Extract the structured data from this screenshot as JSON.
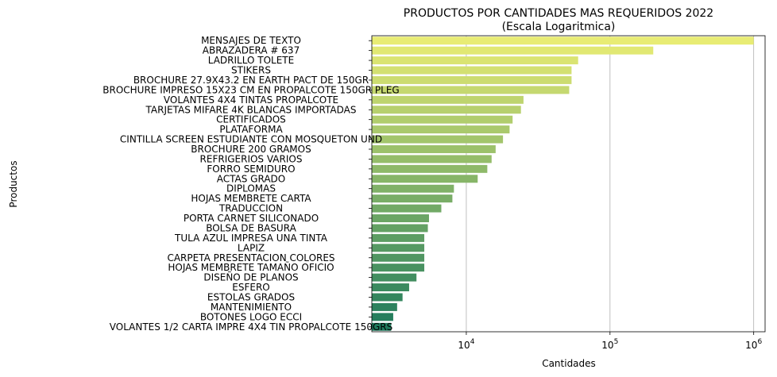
{
  "chart_data": {
    "type": "bar",
    "orientation": "horizontal",
    "title": "PRODUCTOS POR CANTIDADES MAS REQUERIDOS 2022",
    "subtitle": "(Escala Logaritmica)",
    "xlabel": "Cantidades",
    "ylabel": "Productos",
    "xscale": "log",
    "xlim": [
      2200,
      1200000
    ],
    "xticks": [
      {
        "value": 10000,
        "base": "10",
        "exp": "4"
      },
      {
        "value": 100000,
        "base": "10",
        "exp": "5"
      },
      {
        "value": 1000000,
        "base": "10",
        "exp": "6"
      }
    ],
    "grid": "x-major",
    "palette": "yellow-to-green",
    "bar_color_start": "#e8ec74",
    "bar_color_end": "#1f7a5c",
    "categories": [
      "MENSAJES DE TEXTO",
      "ABRAZADERA # 637",
      "LADRILLO TOLETE",
      "STIKERS",
      "BROCHURE 27.9X43.2 EN EARTH PACT DE 150GR",
      "BROCHURE IMPRESO 15X23 CM EN PROPALCOTE 150GR PLEG",
      "VOLANTES 4X4 TINTAS PROPALCOTE",
      "TARJETAS MIFARE 4K BLANCAS IMPORTADAS",
      "CERTIFICADOS",
      "PLATAFORMA",
      "CINTILLA SCREEN ESTUDIANTE CON MOSQUETON UND",
      "BROCHURE 200 GRAMOS",
      "REFRIGERIOS VARIOS",
      "FORRO SEMIDURO",
      "ACTAS GRADO",
      "DIPLOMAS",
      "HOJAS MEMBRETE CARTA",
      "TRADUCCION",
      "PORTA CARNET SILICONADO",
      "BOLSA DE BASURA",
      "TULA AZUL IMPRESA UNA TINTA",
      "LAPIZ",
      "CARPETA PRESENTACION COLORES",
      "HOJAS MEMBRETE TAMAÑO OFICIO",
      "DISEÑO DE PLANOS",
      "ESFERO",
      "ESTOLAS GRADOS",
      "MANTENIMIENTO",
      "BOTONES LOGO ECCI",
      "VOLANTES 1/2 CARTA IMPRE 4X4 TIN PROPALCOTE 150GRS"
    ],
    "values": [
      1000000,
      200000,
      60000,
      54000,
      54000,
      52000,
      25000,
      24000,
      21000,
      20000,
      18000,
      16000,
      15000,
      14000,
      12000,
      8200,
      8000,
      6700,
      5500,
      5400,
      5100,
      5100,
      5100,
      5100,
      4500,
      4000,
      3600,
      3300,
      3100,
      3000
    ]
  }
}
